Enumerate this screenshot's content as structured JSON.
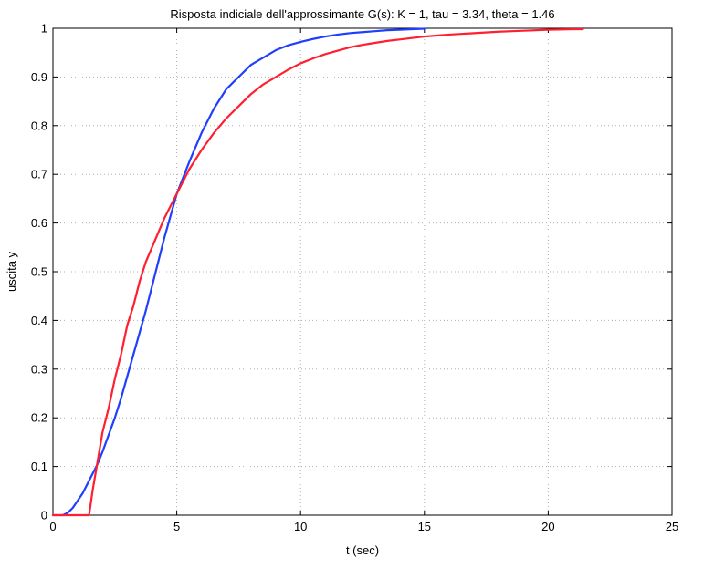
{
  "chart_data": {
    "type": "line",
    "title": "Risposta indiciale dell'approssimante G(s): K = 1, tau = 3.34, theta = 1.46",
    "xlabel": "t (sec)",
    "ylabel": "uscita y",
    "xlim": [
      0,
      25
    ],
    "ylim": [
      0,
      1
    ],
    "x_ticks": [
      0,
      5,
      10,
      15,
      20,
      25
    ],
    "y_ticks": [
      0,
      0.1,
      0.2,
      0.3,
      0.4,
      0.5,
      0.6,
      0.7,
      0.8,
      0.9,
      1
    ],
    "x_tick_labels": [
      "0",
      "5",
      "10",
      "15",
      "20",
      "25"
    ],
    "y_tick_labels": [
      "0",
      "0.1",
      "0.2",
      "0.3",
      "0.4",
      "0.5",
      "0.6",
      "0.7",
      "0.8",
      "0.9",
      "1"
    ],
    "grid": true,
    "grid_style": "dotted",
    "series": [
      {
        "color": "#1f3fff",
        "x": [
          0,
          0.4,
          0.6,
          0.8,
          1.0,
          1.2,
          1.4,
          1.6,
          1.8,
          2.0,
          2.25,
          2.5,
          2.75,
          3.0,
          3.25,
          3.5,
          3.75,
          4.0,
          4.25,
          4.5,
          4.75,
          5.0,
          5.5,
          6.0,
          6.5,
          7.0,
          7.5,
          8.0,
          8.5,
          9.0,
          9.5,
          10.0,
          10.5,
          11.0,
          11.5,
          12.0,
          12.5,
          13.0,
          13.5,
          14.0,
          14.5,
          15.0
        ],
        "y": [
          0,
          0,
          0.005,
          0.015,
          0.03,
          0.045,
          0.065,
          0.085,
          0.105,
          0.13,
          0.165,
          0.2,
          0.24,
          0.285,
          0.33,
          0.375,
          0.42,
          0.47,
          0.52,
          0.57,
          0.615,
          0.66,
          0.725,
          0.785,
          0.835,
          0.875,
          0.9,
          0.925,
          0.94,
          0.955,
          0.965,
          0.972,
          0.978,
          0.983,
          0.987,
          0.99,
          0.992,
          0.994,
          0.996,
          0.997,
          0.998,
          0.999
        ]
      },
      {
        "color": "#ff1f2f",
        "x": [
          0,
          1.46,
          1.6,
          1.8,
          2.0,
          2.25,
          2.5,
          2.75,
          3.0,
          3.25,
          3.5,
          3.75,
          4.0,
          4.25,
          4.5,
          4.75,
          5.0,
          5.5,
          6.0,
          6.5,
          7.0,
          7.5,
          8.0,
          8.5,
          9.0,
          9.5,
          10.0,
          10.5,
          11.0,
          11.5,
          12.0,
          12.5,
          13.0,
          13.5,
          14.0,
          14.5,
          15.0,
          15.5,
          16.0,
          17.0,
          18.0,
          19.0,
          20.0,
          21.0,
          21.4
        ],
        "y": [
          0,
          0,
          0.05,
          0.11,
          0.17,
          0.22,
          0.28,
          0.33,
          0.39,
          0.43,
          0.48,
          0.52,
          0.55,
          0.58,
          0.61,
          0.635,
          0.66,
          0.71,
          0.75,
          0.785,
          0.815,
          0.84,
          0.865,
          0.885,
          0.9,
          0.915,
          0.928,
          0.938,
          0.947,
          0.954,
          0.961,
          0.966,
          0.97,
          0.974,
          0.977,
          0.98,
          0.983,
          0.985,
          0.987,
          0.99,
          0.993,
          0.995,
          0.997,
          0.998,
          0.998
        ]
      }
    ]
  }
}
